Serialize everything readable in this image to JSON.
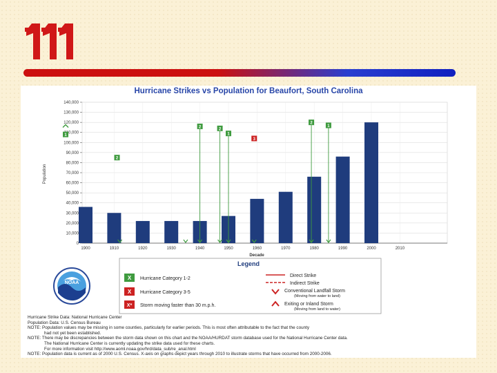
{
  "chart_data": {
    "type": "bar",
    "title": "Hurricane Strikes vs Population for Beaufort, South Carolina",
    "xlabel": "Decade",
    "ylabel": "Population",
    "categories": [
      "1900",
      "1910",
      "1920",
      "1930",
      "1940",
      "1950",
      "1960",
      "1970",
      "1980",
      "1990",
      "2000",
      "2010"
    ],
    "values": [
      36000,
      30000,
      22000,
      22000,
      22000,
      27000,
      44000,
      51000,
      66000,
      86000,
      120000,
      null
    ],
    "ylim": [
      0,
      140000
    ],
    "yticks": [
      0,
      10000,
      20000,
      30000,
      40000,
      50000,
      60000,
      70000,
      80000,
      90000,
      100000,
      110000,
      120000,
      130000,
      140000
    ],
    "ytick_labels": [
      "0",
      "10,000",
      "20,000",
      "30,000",
      "40,000",
      "50,000",
      "60,000",
      "70,000",
      "80,000",
      "90,000",
      "100,000",
      "110,000",
      "120,000",
      "130,000",
      "140,000"
    ],
    "bar_color": "#1f3c7d",
    "grid": true,
    "storms": [
      {
        "year": 1911,
        "category": "2",
        "type": "direct",
        "level": 85000,
        "color": "#3f9b3f"
      },
      {
        "year": 1893,
        "category": "",
        "type": "exiting",
        "level": 117000,
        "color": "#3f9b3f"
      },
      {
        "year": 1893,
        "category": "1",
        "type": "direct",
        "level": 108000,
        "color": "#3f9b3f"
      },
      {
        "year": 1940,
        "category": "2",
        "type": "direct",
        "level": 116000,
        "color": "#3f9b3f"
      },
      {
        "year": 1947,
        "category": "2",
        "type": "direct",
        "level": 114000,
        "color": "#3f9b3f"
      },
      {
        "year": 1950,
        "category": "1",
        "type": "direct",
        "level": 109000,
        "color": "#3f9b3f"
      },
      {
        "year": 1959,
        "category": "3",
        "type": "indirect",
        "level": 104000,
        "color": "#cc2222"
      },
      {
        "year": 1979,
        "category": "2",
        "type": "direct",
        "level": 120000,
        "color": "#3f9b3f"
      },
      {
        "year": 1985,
        "category": "1",
        "type": "direct",
        "level": 117000,
        "color": "#3f9b3f"
      }
    ],
    "landfall_markers": [
      1912,
      1935,
      1940,
      1947,
      1950,
      1959,
      1979,
      1985
    ]
  },
  "legend": {
    "title": "Legend",
    "cat12": "Hurricane Category 1-2",
    "cat35": "Hurricane Category 3-5",
    "fast": "Storm moving faster than 30 m.p.h.",
    "direct": "Direct Strike",
    "indirect": "Indirect Strike",
    "landfall": "Conventional Landfall Storm",
    "landfall_sub": "(Moving from water to land)",
    "exiting": "Exiting or Inland Storm",
    "exiting_sub": "(Moving from land to water)",
    "x_glyph": "X",
    "x_star_glyph": "X*"
  },
  "noaa_label": "NOAA",
  "notes": [
    "Hurricane Strike Data: National Hurricane Center",
    "Population Data: U.S. Census Bureau",
    "NOTE: Population values may be missing in some counties, particularly for earlier periods. This is most often attributable to the fact that the county",
    "had not yet been established.",
    "NOTE: There may be discrepancies between the storm data shown on this chart and the NOAA/HURDAT storm database used for the National Hurricane Center data.",
    "The National Hurricane Center is currently updating the strike data used for these charts.",
    "For more information visit http://www.aoml.noaa.gov/hrd/data_sub/re_anal.html",
    "NOTE: Population data is current as of 2000 U.S. Census. X-axis on graphs depict years through 2010 to illustrate storms that have occurred from 2000-2006."
  ],
  "colors": {
    "green": "#3f9b3f",
    "red": "#cc2222",
    "title": "#2846a8"
  }
}
